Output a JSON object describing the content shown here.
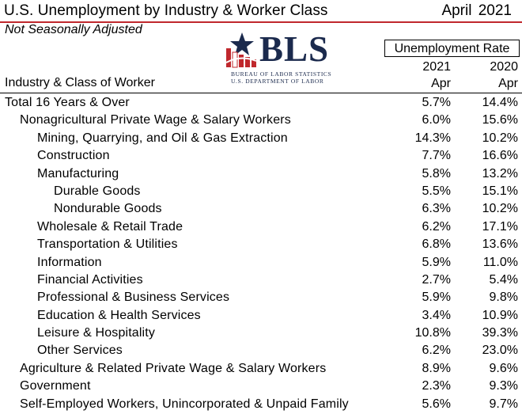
{
  "header": {
    "title": "U.S. Unemployment by Industry & Worker Class",
    "date": "April  2021",
    "subtitle": "Not Seasonally Adjusted",
    "accent_color": "#c0282d"
  },
  "logo": {
    "text": "BLS",
    "line1": "BUREAU OF LABOR STATISTICS",
    "line2": "U.S. DEPARTMENT OF LABOR"
  },
  "table": {
    "rate_header": "Unemployment Rate",
    "stub_header": "Industry & Class of Worker",
    "columns": [
      {
        "year": "2021",
        "month": "Apr"
      },
      {
        "year": "2020",
        "month": "Apr"
      }
    ],
    "rows": [
      {
        "label": "Total 16 Years & Over",
        "indent": 0,
        "v2021": "5.7%",
        "v2020": "14.4%"
      },
      {
        "label": "Nonagricultural Private Wage & Salary Workers",
        "indent": 1,
        "v2021": "6.0%",
        "v2020": "15.6%"
      },
      {
        "label": "Mining, Quarrying, and Oil & Gas Extraction",
        "indent": 2,
        "v2021": "14.3%",
        "v2020": "10.2%"
      },
      {
        "label": "Construction",
        "indent": 2,
        "v2021": "7.7%",
        "v2020": "16.6%"
      },
      {
        "label": "Manufacturing",
        "indent": 2,
        "v2021": "5.8%",
        "v2020": "13.2%"
      },
      {
        "label": "Durable Goods",
        "indent": 3,
        "v2021": "5.5%",
        "v2020": "15.1%"
      },
      {
        "label": "Nondurable Goods",
        "indent": 3,
        "v2021": "6.3%",
        "v2020": "10.2%"
      },
      {
        "label": "Wholesale & Retail Trade",
        "indent": 2,
        "v2021": "6.2%",
        "v2020": "17.1%"
      },
      {
        "label": "Transportation & Utilities",
        "indent": 2,
        "v2021": "6.8%",
        "v2020": "13.6%"
      },
      {
        "label": "Information",
        "indent": 2,
        "v2021": "5.9%",
        "v2020": "11.0%"
      },
      {
        "label": "Financial Activities",
        "indent": 2,
        "v2021": "2.7%",
        "v2020": "5.4%"
      },
      {
        "label": "Professional & Business Services",
        "indent": 2,
        "v2021": "5.9%",
        "v2020": "9.8%"
      },
      {
        "label": "Education & Health Services",
        "indent": 2,
        "v2021": "3.4%",
        "v2020": "10.9%"
      },
      {
        "label": "Leisure & Hospitality",
        "indent": 2,
        "v2021": "10.8%",
        "v2020": "39.3%"
      },
      {
        "label": "Other Services",
        "indent": 2,
        "v2021": "6.2%",
        "v2020": "23.0%"
      },
      {
        "label": "Agriculture & Related Private Wage & Salary Workers",
        "indent": 1,
        "v2021": "8.9%",
        "v2020": "9.6%"
      },
      {
        "label": "Government",
        "indent": 1,
        "v2021": "2.3%",
        "v2020": "9.3%"
      },
      {
        "label": "Self-Employed Workers, Unincorporated & Unpaid Family",
        "indent": 1,
        "v2021": "5.6%",
        "v2020": "9.7%"
      }
    ]
  }
}
